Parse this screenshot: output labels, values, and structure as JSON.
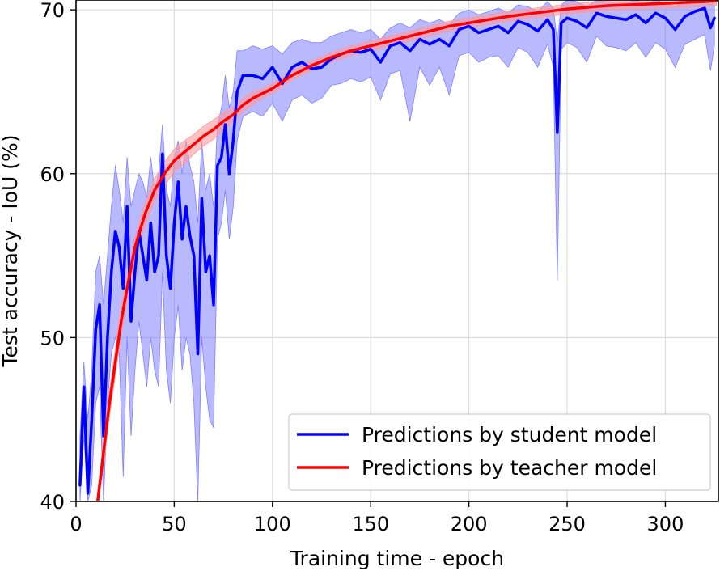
{
  "chart_data": {
    "type": "line",
    "xlabel": "Training time - epoch",
    "ylabel": "Test accuracy - IoU (%)",
    "xlim": [
      0,
      327
    ],
    "ylim": [
      40,
      70.6
    ],
    "xticks": [
      0,
      50,
      100,
      150,
      200,
      250,
      300
    ],
    "yticks": [
      40,
      50,
      60,
      70
    ],
    "grid": true,
    "legend": {
      "position": "lower-right"
    },
    "series": [
      {
        "name": "Predictions by student model",
        "color": "#0000ff",
        "band_color": "#8080ff",
        "x": [
          2,
          4,
          6,
          8,
          10,
          12,
          14,
          16,
          18,
          20,
          22,
          24,
          26,
          28,
          30,
          32,
          34,
          36,
          38,
          40,
          42,
          44,
          46,
          48,
          50,
          52,
          54,
          56,
          58,
          60,
          62,
          64,
          66,
          68,
          70,
          72,
          74,
          76,
          78,
          80,
          82,
          85,
          90,
          95,
          100,
          105,
          110,
          115,
          120,
          125,
          130,
          135,
          140,
          145,
          150,
          155,
          160,
          165,
          170,
          175,
          180,
          185,
          190,
          195,
          200,
          205,
          210,
          215,
          220,
          225,
          230,
          235,
          240,
          243,
          245,
          247,
          250,
          255,
          260,
          265,
          270,
          275,
          280,
          285,
          290,
          295,
          300,
          305,
          310,
          315,
          320,
          323,
          325
        ],
        "y": [
          41,
          47,
          40.5,
          45,
          50.5,
          52,
          44,
          50,
          54,
          56.5,
          55.5,
          53,
          58,
          51,
          54,
          56.5,
          55,
          53.5,
          57,
          54,
          55,
          61.2,
          55,
          53,
          57,
          59.5,
          56,
          58,
          56.2,
          55,
          49,
          58.5,
          54,
          55,
          52,
          60.5,
          61,
          63,
          60,
          62,
          65,
          66,
          66,
          65.8,
          66.5,
          65.5,
          66.5,
          66.8,
          66.4,
          66.5,
          67,
          67.3,
          67.5,
          67.4,
          67.6,
          66.8,
          67.8,
          68,
          67.5,
          68.2,
          67.9,
          68.2,
          67.8,
          68.8,
          69,
          68.6,
          68.8,
          69,
          68.6,
          69.3,
          69.1,
          68.7,
          69.4,
          68.8,
          62.5,
          69.2,
          69.5,
          69.3,
          68.9,
          69.8,
          69.6,
          69.5,
          69.4,
          69.7,
          69.2,
          69.8,
          69.5,
          68.8,
          69.6,
          69.9,
          70.1,
          68.9,
          69.5
        ],
        "upper": [
          44,
          48.5,
          45,
          48,
          54,
          55,
          52,
          55,
          58,
          60.5,
          59,
          57,
          61,
          58,
          59,
          60,
          59.5,
          58.5,
          61,
          59,
          60,
          63,
          59,
          58,
          61,
          62,
          60,
          62,
          60.5,
          59.5,
          57,
          62,
          59,
          60,
          58,
          63,
          64,
          66,
          64,
          65,
          67.5,
          67.5,
          67.8,
          67.6,
          67.8,
          67.3,
          68,
          68.2,
          68,
          68,
          68.4,
          68.6,
          68.8,
          68.6,
          68.8,
          68.2,
          68.9,
          69.2,
          68.9,
          69.4,
          69.2,
          69.4,
          69.1,
          69.8,
          70,
          69.7,
          69.9,
          70.1,
          69.8,
          70.3,
          70.2,
          69.9,
          70.5,
          70.1,
          68,
          70.3,
          70.6,
          70.5,
          70.2,
          70.6,
          70.5,
          70.4,
          70.4,
          70.6,
          70.3,
          70.6,
          70.4,
          70.2,
          70.5,
          70.7,
          70.8,
          70.3,
          70.5
        ],
        "lower": [
          40,
          44,
          40,
          41,
          46,
          47,
          40,
          46,
          49,
          50,
          49,
          41.5,
          50,
          44,
          48,
          51,
          49,
          47,
          50,
          48,
          47,
          54,
          48,
          46,
          50,
          52,
          48,
          50,
          49,
          46,
          40,
          50,
          47,
          45,
          44.5,
          56,
          57,
          59,
          56,
          58,
          62,
          63.5,
          63.8,
          63.5,
          64.3,
          63.2,
          64.5,
          64.8,
          64.3,
          64.6,
          65.4,
          65.5,
          65.8,
          65.6,
          65.9,
          64.5,
          66.1,
          66.3,
          63.2,
          66.5,
          65.4,
          66.5,
          64.8,
          67.2,
          67.4,
          66.8,
          67.1,
          67.2,
          66.5,
          67.7,
          67.4,
          66.5,
          67.9,
          66.5,
          53.5,
          67.6,
          68,
          67.7,
          66.8,
          68.4,
          67.8,
          67.7,
          67.5,
          68,
          67.1,
          68,
          67.6,
          66.5,
          67.9,
          68.2,
          68.5,
          66.3,
          67.8
        ]
      },
      {
        "name": "Predictions by teacher model",
        "color": "#ff0000",
        "band_color": "#ff9a9a",
        "x": [
          11,
          13,
          15,
          17,
          20,
          23,
          26,
          30,
          35,
          40,
          45,
          50,
          55,
          60,
          65,
          70,
          75,
          80,
          85,
          90,
          95,
          100,
          110,
          120,
          130,
          140,
          150,
          160,
          170,
          180,
          190,
          200,
          210,
          220,
          230,
          240,
          250,
          260,
          270,
          280,
          290,
          300,
          310,
          320,
          326
        ],
        "y": [
          40,
          42,
          44,
          46,
          48.5,
          51,
          53,
          55.5,
          57.5,
          59,
          60,
          60.8,
          61.3,
          61.8,
          62.3,
          62.7,
          63.2,
          63.6,
          64.2,
          64.6,
          64.9,
          65.2,
          66,
          66.6,
          67.1,
          67.5,
          67.8,
          68.1,
          68.4,
          68.7,
          69,
          69.2,
          69.4,
          69.6,
          69.75,
          69.9,
          70.05,
          70.15,
          70.25,
          70.3,
          70.35,
          70.4,
          70.45,
          70.5,
          70.55
        ],
        "upper": [
          40.5,
          42.6,
          44.8,
          46.8,
          49.3,
          51.8,
          53.8,
          56.2,
          58.2,
          59.7,
          60.7,
          61.5,
          62,
          62.4,
          62.9,
          63.3,
          63.7,
          64.1,
          64.6,
          65,
          65.2,
          65.5,
          66.3,
          66.9,
          67.4,
          67.8,
          68.1,
          68.4,
          68.7,
          69,
          69.3,
          69.5,
          69.7,
          69.9,
          70.05,
          70.2,
          70.35,
          70.45,
          70.55,
          70.6,
          70.65,
          70.7,
          70.75,
          70.8,
          70.85
        ],
        "lower": [
          40,
          41.4,
          43.2,
          45.2,
          47.7,
          50.2,
          52.2,
          54.8,
          56.8,
          58.3,
          59.3,
          60.1,
          60.6,
          61.2,
          61.7,
          62.1,
          62.7,
          63.1,
          63.8,
          64.2,
          64.6,
          64.9,
          65.7,
          66.3,
          66.8,
          67.2,
          67.5,
          67.8,
          68.1,
          68.4,
          68.7,
          68.9,
          69.1,
          69.3,
          69.45,
          69.6,
          69.75,
          69.85,
          69.95,
          70,
          70.05,
          70.1,
          70.15,
          70.2,
          70.25
        ]
      }
    ]
  }
}
